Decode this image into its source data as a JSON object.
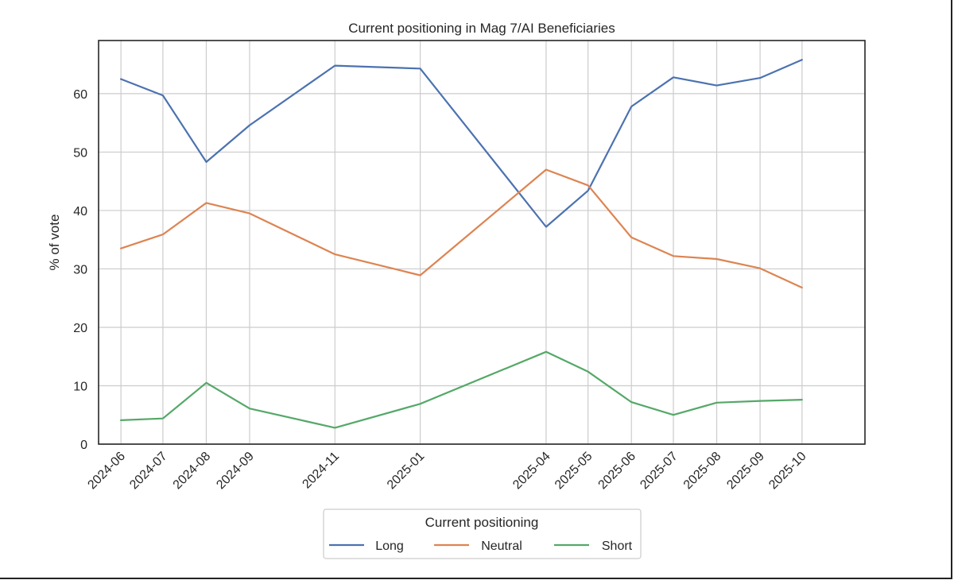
{
  "chart_data": {
    "type": "line",
    "title": "Current positioning in Mag 7/AI Beneficiaries",
    "xlabel": "",
    "ylabel": "% of vote",
    "x": [
      "2024-06",
      "2024-07",
      "2024-08",
      "2024-09",
      "2024-11",
      "2025-01",
      "2025-04",
      "2025-05",
      "2025-06",
      "2025-07",
      "2025-08",
      "2025-09",
      "2025-10"
    ],
    "x_tick_labels": [
      "2024-06",
      "2024-07",
      "2024-08",
      "2024-09",
      "2024-11",
      "2025-01",
      "2025-04",
      "2025-05",
      "2025-06",
      "2025-07",
      "2025-08",
      "2025-09",
      "2025-10"
    ],
    "xlim": [
      "2024-05-16",
      "2025-11-15"
    ],
    "ylim": [
      0,
      69.1
    ],
    "y_ticks": [
      0,
      10,
      20,
      30,
      40,
      50,
      60
    ],
    "grid": true,
    "legend": {
      "title": "Current positioning",
      "placement": "below, centered",
      "ncol": 3
    },
    "series": [
      {
        "name": "Long",
        "color": "#4c72b0",
        "values": [
          62.5,
          59.7,
          48.3,
          54.6,
          64.8,
          64.3,
          37.2,
          43.4,
          57.8,
          62.8,
          61.4,
          62.7,
          65.8
        ]
      },
      {
        "name": "Neutral",
        "color": "#dd8452",
        "values": [
          33.5,
          35.9,
          41.3,
          39.5,
          32.5,
          28.9,
          47.0,
          44.3,
          35.4,
          32.2,
          31.7,
          30.1,
          26.8
        ]
      },
      {
        "name": "Short",
        "color": "#55a868",
        "values": [
          4.1,
          4.4,
          10.5,
          6.1,
          2.8,
          6.9,
          15.8,
          12.4,
          7.2,
          5.0,
          7.1,
          7.4,
          7.6
        ]
      }
    ]
  }
}
